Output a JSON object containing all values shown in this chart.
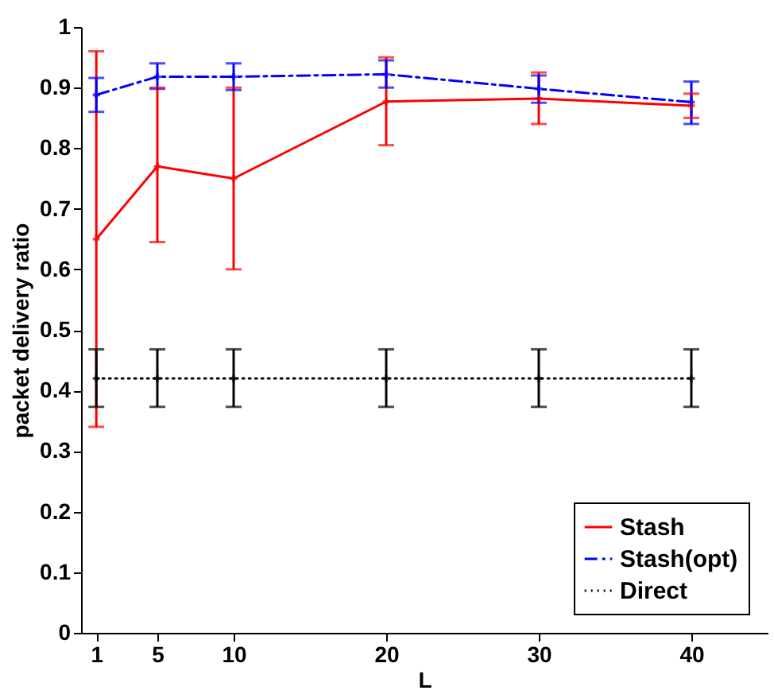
{
  "chart_data": {
    "type": "line",
    "xlabel": "L",
    "ylabel": "packet delivery ratio",
    "x": [
      1,
      5,
      10,
      20,
      30,
      40
    ],
    "xlim": [
      0,
      45
    ],
    "xticks": [
      1,
      5,
      10,
      20,
      30,
      40
    ],
    "ylim": [
      0,
      1
    ],
    "yticks": [
      0,
      0.1,
      0.2,
      0.3,
      0.4,
      0.5,
      0.6,
      0.7,
      0.8,
      0.9,
      1
    ],
    "grid": false,
    "legend": "bottom right",
    "marker": "cross",
    "series": [
      {
        "name": "Stash",
        "color": "#ff0000",
        "line_style": "solid",
        "values": [
          0.65,
          0.77,
          0.75,
          0.877,
          0.882,
          0.87
        ],
        "errors": [
          [
            0.34,
            0.96
          ],
          [
            0.645,
            0.9
          ],
          [
            0.6,
            0.9
          ],
          [
            0.805,
            0.95
          ],
          [
            0.84,
            0.925
          ],
          [
            0.85,
            0.89
          ]
        ]
      },
      {
        "name": "Stash(opt)",
        "color": "#0000ff",
        "line_style": "dashed",
        "values": [
          0.888,
          0.918,
          0.918,
          0.922,
          0.898,
          0.876
        ],
        "errors": [
          [
            0.86,
            0.916
          ],
          [
            0.898,
            0.94
          ],
          [
            0.896,
            0.94
          ],
          [
            0.9,
            0.945
          ],
          [
            0.875,
            0.92
          ],
          [
            0.84,
            0.91
          ]
        ]
      },
      {
        "name": "Direct",
        "color": "#000000",
        "line_style": "dotted",
        "values": [
          0.42,
          0.42,
          0.42,
          0.42,
          0.42,
          0.42
        ],
        "errors": [
          [
            0.373,
            0.468
          ],
          [
            0.373,
            0.468
          ],
          [
            0.373,
            0.468
          ],
          [
            0.373,
            0.468
          ],
          [
            0.373,
            0.468
          ],
          [
            0.373,
            0.468
          ]
        ]
      }
    ]
  }
}
